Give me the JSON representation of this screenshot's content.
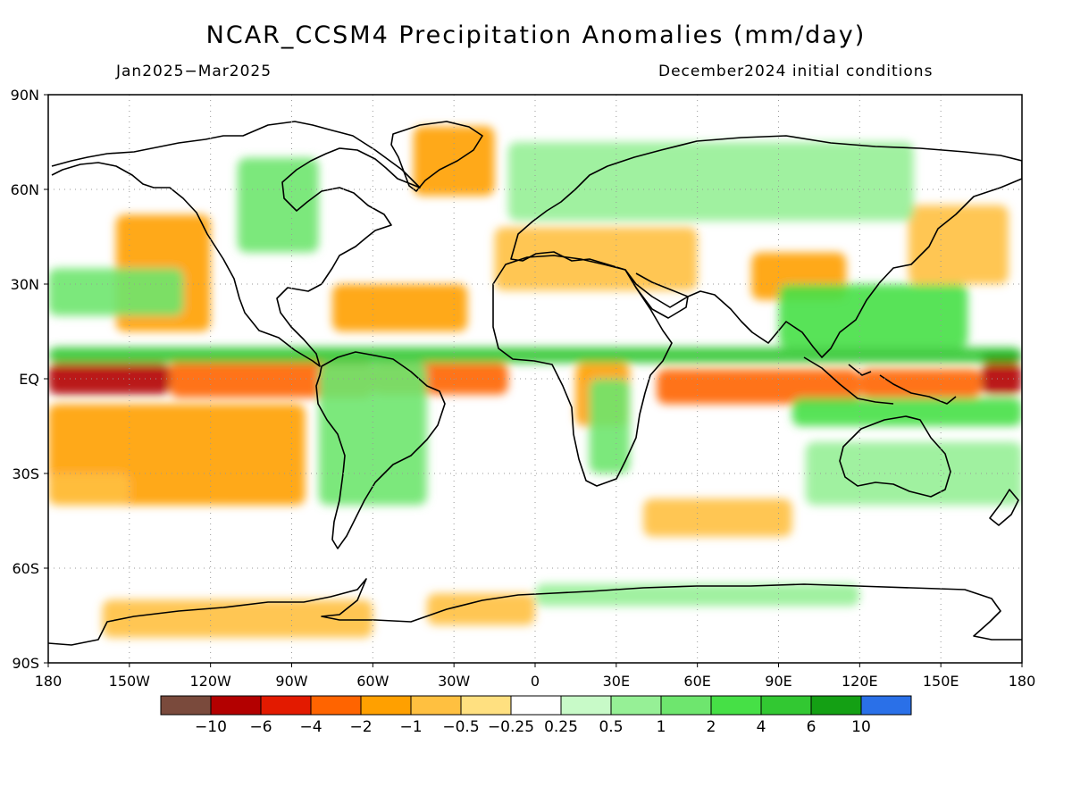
{
  "title": "NCAR_CCSM4 Precipitation Anomalies (mm/day)",
  "subtitle_left": "Jan2025−Mar2025",
  "subtitle_right": "December2024 initial conditions",
  "axes": {
    "lat_ticks": [
      {
        "value": 90,
        "label": "90N"
      },
      {
        "value": 60,
        "label": "60N"
      },
      {
        "value": 30,
        "label": "30N"
      },
      {
        "value": 0,
        "label": "EQ"
      },
      {
        "value": -30,
        "label": "30S"
      },
      {
        "value": -60,
        "label": "60S"
      },
      {
        "value": -90,
        "label": "90S"
      }
    ],
    "lon_ticks": [
      {
        "value": 0,
        "label": "180"
      },
      {
        "value": 30,
        "label": "150W"
      },
      {
        "value": 60,
        "label": "120W"
      },
      {
        "value": 90,
        "label": "90W"
      },
      {
        "value": 120,
        "label": "60W"
      },
      {
        "value": 150,
        "label": "30W"
      },
      {
        "value": 180,
        "label": "0"
      },
      {
        "value": 210,
        "label": "30E"
      },
      {
        "value": 240,
        "label": "60E"
      },
      {
        "value": 270,
        "label": "90E"
      },
      {
        "value": 300,
        "label": "120E"
      },
      {
        "value": 330,
        "label": "150E"
      },
      {
        "value": 360,
        "label": "180"
      }
    ],
    "grid": "dotted"
  },
  "colorbar": {
    "colors": [
      "#7a4a3c",
      "#b30000",
      "#e31a00",
      "#ff6400",
      "#ffa000",
      "#ffc040",
      "#ffe080",
      "#ffffff",
      "#c8fac8",
      "#96f096",
      "#6ee66e",
      "#46e046",
      "#32c832",
      "#14a014",
      "#2a70e8"
    ],
    "labels": [
      "−10",
      "−6",
      "−4",
      "−2",
      "−1",
      "−0.5",
      "−0.25",
      "0.25",
      "0.5",
      "1",
      "2",
      "4",
      "6",
      "10"
    ]
  },
  "chart_data": {
    "type": "heatmap",
    "title": "NCAR_CCSM4 Precipitation Anomalies (mm/day)",
    "period": "Jan2025−Mar2025",
    "initial_conditions": "December2024 initial conditions",
    "units": "mm/day",
    "projection": "lat-lon, 180 to 180, 90S to 90N",
    "levels": [
      -10,
      -6,
      -4,
      -2,
      -1,
      -0.5,
      -0.25,
      0.25,
      0.5,
      1,
      2,
      4,
      6,
      10
    ],
    "anomaly_regions": [
      {
        "lon": [
          0,
          45
        ],
        "lat": [
          -5,
          5
        ],
        "level": -6
      },
      {
        "lon": [
          45,
          120
        ],
        "lat": [
          -6,
          6
        ],
        "level": -2
      },
      {
        "lon": [
          120,
          170
        ],
        "lat": [
          -5,
          5
        ],
        "level": -2
      },
      {
        "lon": [
          225,
          300
        ],
        "lat": [
          -8,
          3
        ],
        "level": -2
      },
      {
        "lon": [
          300,
          345
        ],
        "lat": [
          -6,
          3
        ],
        "level": -2
      },
      {
        "lon": [
          345,
          360
        ],
        "lat": [
          -5,
          5
        ],
        "level": -6
      },
      {
        "lon": [
          195,
          215
        ],
        "lat": [
          -15,
          5
        ],
        "level": -1
      },
      {
        "lon": [
          0,
          95
        ],
        "lat": [
          -40,
          -8
        ],
        "level": -1
      },
      {
        "lon": [
          25,
          60
        ],
        "lat": [
          15,
          52
        ],
        "level": -1
      },
      {
        "lon": [
          105,
          155
        ],
        "lat": [
          15,
          30
        ],
        "level": -1
      },
      {
        "lon": [
          135,
          165
        ],
        "lat": [
          58,
          80
        ],
        "level": -1
      },
      {
        "lon": [
          260,
          295
        ],
        "lat": [
          25,
          40
        ],
        "level": -1
      },
      {
        "lon": [
          165,
          240
        ],
        "lat": [
          28,
          48
        ],
        "level": -0.5
      },
      {
        "lon": [
          318,
          355
        ],
        "lat": [
          30,
          55
        ],
        "level": -0.5
      },
      {
        "lon": [
          20,
          120
        ],
        "lat": [
          -82,
          -70
        ],
        "level": -0.5
      },
      {
        "lon": [
          140,
          180
        ],
        "lat": [
          -78,
          -68
        ],
        "level": -0.5
      },
      {
        "lon": [
          220,
          275
        ],
        "lat": [
          -50,
          -38
        ],
        "level": -0.5
      },
      {
        "lon": [
          0,
          30
        ],
        "lat": [
          -40,
          -30
        ],
        "level": -0.5
      },
      {
        "lon": [
          0,
          360
        ],
        "lat": [
          5,
          10
        ],
        "level": 4
      },
      {
        "lon": [
          345,
          360
        ],
        "lat": [
          5,
          8
        ],
        "level": 6
      },
      {
        "lon": [
          275,
          360
        ],
        "lat": [
          -15,
          -6
        ],
        "level": 2
      },
      {
        "lon": [
          270,
          340
        ],
        "lat": [
          10,
          30
        ],
        "level": 2
      },
      {
        "lon": [
          0,
          50
        ],
        "lat": [
          20,
          35
        ],
        "level": 1
      },
      {
        "lon": [
          70,
          100
        ],
        "lat": [
          40,
          70
        ],
        "level": 1
      },
      {
        "lon": [
          200,
          215
        ],
        "lat": [
          -30,
          0
        ],
        "level": 1
      },
      {
        "lon": [
          100,
          140
        ],
        "lat": [
          -40,
          5
        ],
        "level": 1
      },
      {
        "lon": [
          170,
          320
        ],
        "lat": [
          50,
          75
        ],
        "level": 0.5
      },
      {
        "lon": [
          280,
          360
        ],
        "lat": [
          -40,
          -20
        ],
        "level": 0.5
      },
      {
        "lon": [
          180,
          300
        ],
        "lat": [
          -72,
          -65
        ],
        "level": 0.5
      }
    ]
  }
}
